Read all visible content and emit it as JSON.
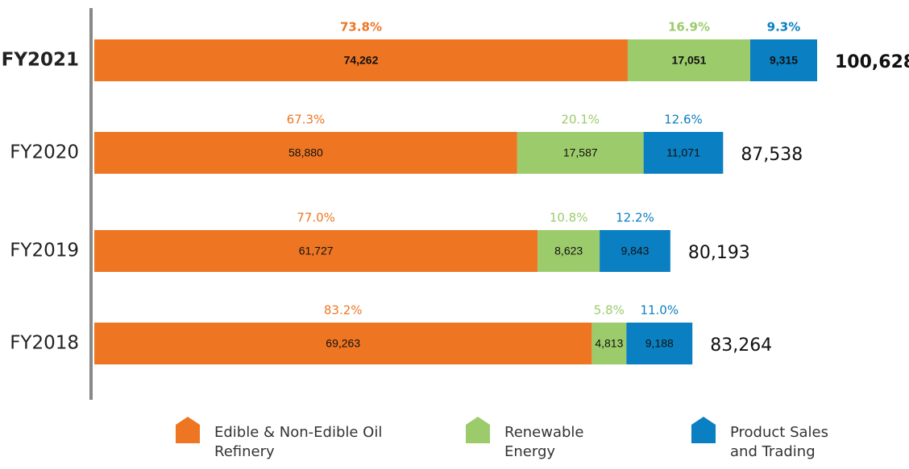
{
  "chart_data": {
    "type": "stacked-bar-horizontal",
    "categories": [
      "FY2021",
      "FY2020",
      "FY2019",
      "FY2018"
    ],
    "series": [
      {
        "name": "Edible & Non-Edible Oil Refinery",
        "color": "#ee7623",
        "values": [
          74262,
          58880,
          61727,
          69263
        ],
        "value_labels": [
          "74,262",
          "58,880",
          "61,727",
          "69,263"
        ],
        "shares": [
          73.8,
          67.3,
          77.0,
          83.2
        ],
        "share_labels": [
          "73.8%",
          "67.3%",
          "77.0%",
          "83.2%"
        ]
      },
      {
        "name": "Renewable Energy",
        "color": "#9ccb6b",
        "values": [
          17051,
          17587,
          8623,
          4813
        ],
        "value_labels": [
          "17,051",
          "17,587",
          "8,623",
          "4,813"
        ],
        "shares": [
          16.9,
          20.1,
          10.8,
          5.8
        ],
        "share_labels": [
          "16.9%",
          "20.1%",
          "10.8%",
          "5.8%"
        ]
      },
      {
        "name": "Product Sales and Trading",
        "color": "#0a7fc2",
        "values": [
          9315,
          11071,
          9843,
          9188
        ],
        "value_labels": [
          "9,315",
          "11,071",
          "9,843",
          "9,188"
        ],
        "shares": [
          9.3,
          12.6,
          12.2,
          11.0
        ],
        "share_labels": [
          "9.3%",
          "12.6%",
          "12.2%",
          "11.0%"
        ]
      }
    ],
    "totals": [
      100628,
      87538,
      80193,
      83264
    ],
    "total_labels": [
      "100,628",
      "87,538",
      "80,193",
      "83,264"
    ]
  }
}
